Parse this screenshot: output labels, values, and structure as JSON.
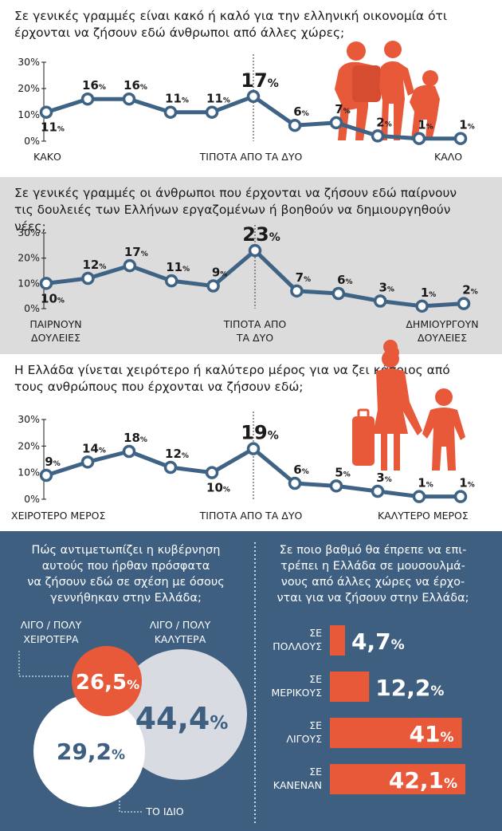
{
  "colors": {
    "line": "#3e6384",
    "accent": "#e8593a",
    "panel_dark": "#3e5f80",
    "venn_light": "#d8dce2"
  },
  "chart_data": [
    {
      "type": "line",
      "title": "Σε γενικές γραμμές είναι κακό ή καλό για την ελληνική οικονομία ότι έρχονται να ζήσουν εδώ άνθρωποι από άλλες χώρες;",
      "x": [
        0,
        1,
        2,
        3,
        4,
        5,
        6,
        7,
        8,
        9,
        10
      ],
      "values": [
        11,
        16,
        16,
        11,
        11,
        17,
        6,
        7,
        2,
        1,
        1
      ],
      "data_labels": [
        "11%",
        "16%",
        "16%",
        "11%",
        "11%",
        "17%",
        "6%",
        "7%",
        "2%",
        "1%",
        "1%"
      ],
      "y_ticks": [
        "30%",
        "20%",
        "10%",
        "0%"
      ],
      "ylim": [
        0,
        30
      ],
      "x_labels": [
        "ΚΑΚΟ",
        "ΤΙΠΟΤΑ ΑΠΟ ΤΑ ΔΥΟ",
        "ΚΑΛΟ"
      ]
    },
    {
      "type": "line",
      "title": "Σε γενικές γραμμές οι άνθρωποι που έρχονται να ζήσουν εδώ παίρνουν τις δουλειές των Ελλήνων εργαζομένων ή βοηθούν να δημιουργηθούν νέες;",
      "x": [
        0,
        1,
        2,
        3,
        4,
        5,
        6,
        7,
        8,
        9,
        10
      ],
      "values": [
        10,
        12,
        17,
        11,
        9,
        23,
        7,
        6,
        3,
        1,
        2
      ],
      "data_labels": [
        "10%",
        "12%",
        "17%",
        "11%",
        "9%",
        "23%",
        "7%",
        "6%",
        "3%",
        "1%",
        "2%"
      ],
      "y_ticks": [
        "30%",
        "20%",
        "10%",
        "0%"
      ],
      "ylim": [
        0,
        30
      ],
      "x_labels": [
        "ΠΑΙΡΝΟΥΝ ΔΟΥΛΕΙΕΣ",
        "ΤΙΠΟΤΑ ΑΠΟ ΤΑ ΔΥΟ",
        "ΔΗΜΙΟΥΡΓΟΥΝ ΔΟΥΛΕΙΕΣ"
      ]
    },
    {
      "type": "line",
      "title": "Η Ελλάδα γίνεται χειρότερο ή καλύτερο μέρος για να ζει κάποιος από τους ανθρώπους που έρχονται να ζήσουν εδώ;",
      "x": [
        0,
        1,
        2,
        3,
        4,
        5,
        6,
        7,
        8,
        9,
        10
      ],
      "values": [
        9,
        14,
        18,
        12,
        10,
        19,
        6,
        5,
        3,
        1,
        1
      ],
      "data_labels": [
        "9%",
        "14%",
        "18%",
        "12%",
        "10%",
        "19%",
        "6%",
        "5%",
        "3%",
        "1%",
        "1%"
      ],
      "y_ticks": [
        "30%",
        "20%",
        "10%",
        "0%"
      ],
      "ylim": [
        0,
        30
      ],
      "x_labels": [
        "ΧΕΙΡΟΤΕΡΟ ΜΕΡΟΣ",
        "ΤΙΠΟΤΑ ΑΠΟ ΤΑ ΔΥΟ",
        "ΚΑΛΥΤΕΡΟ ΜΕΡΟΣ"
      ]
    },
    {
      "type": "pie",
      "title": "Πώς αντιμετωπίζει η κυβέρνηση αυτούς που ήρθαν πρόσφατα να ζήσουν εδώ σε σχέση με όσους γεννήθηκαν στην Ελλάδα;",
      "categories": [
        "ΛΙΓΟ / ΠΟΛΥ ΧΕΙΡΟΤΕΡΑ",
        "ΛΙΓΟ / ΠΟΛΥ ΚΑΛΥΤΕΡΑ",
        "ΤΟ ΙΔΙΟ"
      ],
      "values": [
        26.5,
        44.4,
        29.2
      ],
      "value_labels": [
        "26,5%",
        "44,4%",
        "29,2%"
      ]
    },
    {
      "type": "bar",
      "title": "Σε ποιο βαθμό θα έπρεπε να επι- τρέπει η Ελλάδα σε μουσουλμά- νους από άλλες χώρες να έρχο- νται για να ζήσουν στην Ελλάδα;",
      "categories": [
        "ΣΕ ΠΟΛΛΟΥΣ",
        "ΣΕ ΜΕΡΙΚΟΥΣ",
        "ΣΕ ΛΙΓΟΥΣ",
        "ΣΕ ΚΑΝΕΝΑΝ"
      ],
      "values": [
        4.7,
        12.2,
        41,
        42.1
      ],
      "value_labels": [
        "4,7%",
        "12,2%",
        "41%",
        "42,1%"
      ]
    }
  ]
}
